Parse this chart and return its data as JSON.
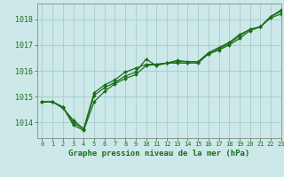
{
  "title": "Graphe pression niveau de la mer (hPa)",
  "bg_color": "#cce8e8",
  "grid_color": "#aad0d0",
  "line_color": "#1a6e1a",
  "spine_color": "#888888",
  "xlim": [
    -0.5,
    23
  ],
  "ylim": [
    1013.4,
    1018.6
  ],
  "xticks": [
    0,
    1,
    2,
    3,
    4,
    5,
    6,
    7,
    8,
    9,
    10,
    11,
    12,
    13,
    14,
    15,
    16,
    17,
    18,
    19,
    20,
    21,
    22,
    23
  ],
  "yticks": [
    1014,
    1015,
    1016,
    1017,
    1018
  ],
  "series": [
    [
      1014.8,
      1014.8,
      1014.6,
      1013.9,
      1013.7,
      1014.8,
      1015.2,
      1015.5,
      1015.7,
      1015.85,
      1016.2,
      1016.25,
      1016.3,
      1016.3,
      1016.3,
      1016.3,
      1016.65,
      1016.8,
      1017.0,
      1017.25,
      1017.55,
      1017.7,
      1018.05,
      1018.2
    ],
    [
      1014.8,
      1014.8,
      1014.6,
      1014.0,
      1013.75,
      1015.05,
      1015.35,
      1015.55,
      1015.8,
      1015.95,
      1016.45,
      1016.2,
      1016.3,
      1016.35,
      1016.35,
      1016.35,
      1016.65,
      1016.85,
      1017.05,
      1017.35,
      1017.6,
      1017.7,
      1018.1,
      1018.3
    ],
    [
      1014.8,
      1014.8,
      1014.55,
      1014.1,
      1013.75,
      1015.15,
      1015.45,
      1015.65,
      1015.95,
      1016.1,
      1016.25,
      1016.25,
      1016.3,
      1016.4,
      1016.35,
      1016.35,
      1016.7,
      1016.9,
      1017.1,
      1017.4,
      1017.6,
      1017.7,
      1018.1,
      1018.35
    ]
  ]
}
